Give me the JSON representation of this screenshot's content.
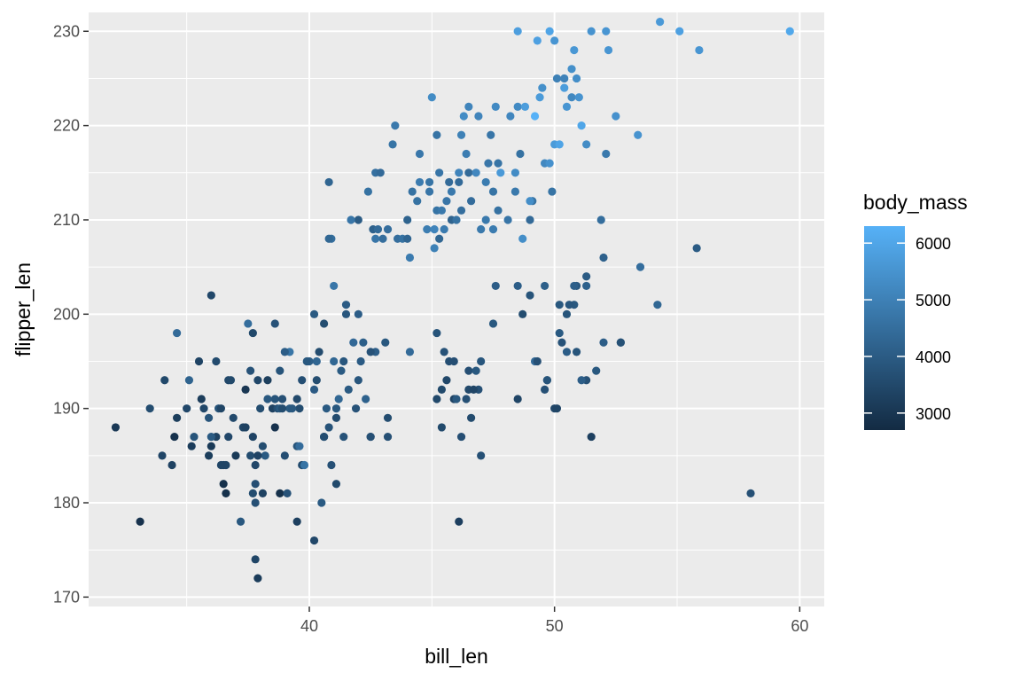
{
  "chart_data": {
    "type": "scatter",
    "title": "",
    "xlabel": "bill_len",
    "ylabel": "flipper_len",
    "xlim": [
      31,
      61
    ],
    "ylim": [
      169,
      232
    ],
    "x_ticks": [
      40,
      50,
      60
    ],
    "y_ticks": [
      170,
      180,
      190,
      200,
      210,
      220,
      230
    ],
    "grid": true,
    "background": "#ebebeb",
    "color_scale": {
      "name": "body_mass",
      "min": 2700,
      "max": 6300,
      "low_color": "#132b43",
      "high_color": "#56b1f7",
      "ticks": [
        3000,
        4000,
        5000,
        6000
      ]
    },
    "legend_position": "right",
    "points": [
      [
        32.1,
        188,
        3050
      ],
      [
        33.1,
        178,
        2900
      ],
      [
        33.5,
        190,
        3600
      ],
      [
        34.0,
        185,
        3400
      ],
      [
        34.1,
        193,
        3475
      ],
      [
        34.4,
        184,
        3325
      ],
      [
        34.5,
        187,
        2900
      ],
      [
        34.6,
        189,
        3200
      ],
      [
        34.6,
        198,
        4400
      ],
      [
        35.0,
        190,
        3450
      ],
      [
        35.1,
        193,
        4200
      ],
      [
        35.2,
        186,
        3150
      ],
      [
        35.3,
        187,
        3800
      ],
      [
        35.5,
        195,
        3350
      ],
      [
        35.6,
        191,
        3175
      ],
      [
        35.7,
        190,
        3450
      ],
      [
        35.9,
        185,
        3200
      ],
      [
        35.9,
        189,
        3800
      ],
      [
        36.0,
        186,
        3100
      ],
      [
        36.0,
        202,
        3450
      ],
      [
        36.2,
        187,
        3300
      ],
      [
        36.2,
        195,
        3550
      ],
      [
        36.3,
        190,
        3800
      ],
      [
        36.4,
        190,
        3400
      ],
      [
        36.5,
        182,
        2850
      ],
      [
        36.5,
        184,
        3300
      ],
      [
        36.6,
        181,
        2850
      ],
      [
        36.6,
        184,
        3400
      ],
      [
        36.7,
        187,
        3450
      ],
      [
        36.7,
        193,
        3450
      ],
      [
        36.8,
        193,
        3500
      ],
      [
        36.9,
        189,
        3500
      ],
      [
        37.0,
        185,
        3100
      ],
      [
        37.2,
        178,
        3900
      ],
      [
        37.3,
        188,
        3400
      ],
      [
        37.4,
        192,
        3000
      ],
      [
        37.5,
        199,
        4475
      ],
      [
        37.6,
        185,
        3600
      ],
      [
        37.6,
        194,
        3750
      ],
      [
        37.7,
        181,
        3600
      ],
      [
        37.7,
        187,
        3350
      ],
      [
        37.7,
        198,
        3500
      ],
      [
        37.8,
        174,
        3400
      ],
      [
        37.8,
        180,
        3700
      ],
      [
        37.9,
        172,
        3150
      ],
      [
        37.9,
        193,
        3450
      ],
      [
        38.0,
        190,
        3600
      ],
      [
        38.1,
        181,
        3325
      ],
      [
        38.1,
        186,
        3600
      ],
      [
        38.2,
        185,
        3950
      ],
      [
        38.3,
        193,
        3225
      ],
      [
        38.5,
        190,
        3325
      ],
      [
        38.6,
        188,
        2900
      ],
      [
        38.6,
        191,
        3800
      ],
      [
        38.6,
        199,
        3750
      ],
      [
        38.7,
        190,
        3650
      ],
      [
        38.8,
        181,
        2850
      ],
      [
        38.9,
        191,
        3700
      ],
      [
        39.0,
        185,
        3650
      ],
      [
        39.1,
        181,
        3750
      ],
      [
        39.2,
        196,
        4675
      ],
      [
        39.5,
        178,
        3250
      ],
      [
        39.5,
        186,
        3800
      ],
      [
        39.6,
        186,
        4450
      ],
      [
        39.7,
        184,
        3550
      ],
      [
        39.8,
        184,
        4650
      ],
      [
        40.2,
        176,
        3450
      ],
      [
        40.3,
        195,
        4250
      ],
      [
        40.5,
        180,
        3950
      ],
      [
        40.6,
        187,
        3475
      ],
      [
        40.8,
        188,
        3775
      ],
      [
        40.9,
        184,
        3700
      ],
      [
        41.0,
        203,
        4725
      ],
      [
        41.1,
        182,
        3525
      ],
      [
        41.3,
        194,
        3950
      ],
      [
        41.4,
        195,
        3850
      ],
      [
        41.5,
        201,
        4000
      ],
      [
        41.6,
        192,
        3950
      ],
      [
        42.0,
        200,
        4050
      ],
      [
        42.1,
        195,
        4000
      ],
      [
        42.3,
        191,
        4150
      ],
      [
        42.5,
        187,
        3350
      ],
      [
        42.7,
        196,
        4075
      ],
      [
        43.1,
        197,
        3900
      ],
      [
        43.2,
        187,
        3700
      ],
      [
        44.1,
        196,
        4400
      ],
      [
        45.2,
        191,
        3500
      ],
      [
        45.4,
        188,
        3525
      ],
      [
        45.5,
        196,
        3750
      ],
      [
        45.7,
        195,
        3650
      ],
      [
        46.1,
        178,
        3250
      ],
      [
        46.2,
        187,
        3650
      ],
      [
        46.4,
        191,
        3700
      ],
      [
        46.9,
        192,
        3700
      ],
      [
        47.0,
        185,
        3700
      ],
      [
        47.5,
        199,
        3900
      ],
      [
        48.5,
        191,
        3400
      ],
      [
        49.0,
        210,
        4400
      ],
      [
        49.2,
        195,
        4400
      ],
      [
        49.6,
        192,
        3700
      ],
      [
        50.0,
        190,
        3450
      ],
      [
        50.2,
        198,
        3950
      ],
      [
        50.5,
        196,
        4050
      ],
      [
        50.8,
        201,
        3900
      ],
      [
        51.5,
        187,
        3250
      ],
      [
        51.7,
        194,
        3900
      ],
      [
        52.0,
        197,
        4050
      ],
      [
        52.7,
        197,
        3725
      ],
      [
        53.5,
        205,
        4500
      ],
      [
        54.2,
        201,
        4300
      ],
      [
        55.8,
        207,
        4000
      ],
      [
        58.0,
        181,
        3700
      ],
      [
        42.5,
        187,
        3700
      ],
      [
        43.2,
        189,
        3600
      ],
      [
        46.6,
        189,
        3550
      ],
      [
        45.9,
        191,
        3350
      ],
      [
        46.5,
        192,
        3500
      ],
      [
        49.7,
        193,
        3775
      ],
      [
        50.1,
        190,
        3400
      ],
      [
        48.7,
        200,
        3600
      ],
      [
        50.3,
        197,
        3750
      ],
      [
        46.0,
        191,
        3900
      ],
      [
        40.8,
        214,
        4250
      ],
      [
        42.0,
        210,
        4000
      ],
      [
        42.4,
        213,
        4600
      ],
      [
        42.6,
        209,
        4150
      ],
      [
        43.2,
        209,
        4500
      ],
      [
        43.5,
        220,
        4800
      ],
      [
        43.6,
        208,
        4500
      ],
      [
        43.8,
        208,
        4600
      ],
      [
        44.0,
        210,
        4200
      ],
      [
        44.4,
        212,
        4600
      ],
      [
        44.5,
        214,
        4850
      ],
      [
        44.9,
        213,
        4700
      ],
      [
        45.1,
        207,
        5000
      ],
      [
        45.2,
        211,
        4650
      ],
      [
        45.3,
        215,
        4700
      ],
      [
        45.4,
        211,
        4800
      ],
      [
        45.5,
        209,
        4850
      ],
      [
        45.7,
        214,
        4400
      ],
      [
        45.8,
        210,
        4200
      ],
      [
        46.1,
        215,
        5100
      ],
      [
        46.2,
        219,
        5000
      ],
      [
        46.4,
        217,
        4900
      ],
      [
        46.5,
        215,
        4400
      ],
      [
        46.8,
        215,
        5150
      ],
      [
        47.2,
        214,
        4875
      ],
      [
        47.3,
        216,
        4725
      ],
      [
        47.5,
        209,
        4875
      ],
      [
        47.7,
        216,
        4650
      ],
      [
        48.2,
        221,
        5150
      ],
      [
        48.4,
        213,
        4800
      ],
      [
        48.5,
        222,
        5250
      ],
      [
        48.7,
        208,
        5350
      ],
      [
        49.1,
        212,
        4625
      ],
      [
        49.6,
        216,
        5200
      ],
      [
        49.9,
        213,
        4650
      ],
      [
        50.0,
        218,
        5700
      ],
      [
        50.4,
        224,
        5750
      ],
      [
        50.5,
        222,
        5550
      ],
      [
        50.8,
        228,
        5600
      ],
      [
        51.1,
        220,
        6000
      ],
      [
        51.3,
        218,
        5300
      ],
      [
        52.1,
        217,
        4800
      ],
      [
        52.2,
        228,
        5550
      ],
      [
        52.5,
        221,
        5450
      ],
      [
        53.4,
        219,
        5500
      ],
      [
        54.3,
        231,
        5650
      ],
      [
        55.1,
        230,
        5850
      ],
      [
        55.9,
        228,
        5550
      ],
      [
        59.6,
        230,
        6050
      ],
      [
        48.5,
        230,
        5800
      ],
      [
        49.3,
        229,
        5850
      ],
      [
        49.8,
        230,
        5950
      ],
      [
        50.0,
        229,
        5550
      ],
      [
        50.1,
        225,
        5000
      ],
      [
        50.4,
        225,
        5050
      ],
      [
        50.7,
        226,
        5400
      ],
      [
        50.9,
        225,
        5350
      ],
      [
        51.5,
        230,
        5500
      ],
      [
        52.1,
        230,
        5550
      ],
      [
        47.8,
        215,
        5650
      ],
      [
        49.0,
        212,
        5350
      ],
      [
        45.0,
        223,
        5300
      ],
      [
        48.4,
        215,
        5300
      ],
      [
        49.5,
        224,
        5400
      ],
      [
        47.6,
        222,
        5250
      ],
      [
        46.5,
        222,
        5100
      ],
      [
        45.2,
        219,
        4650
      ],
      [
        44.5,
        217,
        4750
      ],
      [
        43.4,
        218,
        4650
      ],
      [
        42.7,
        215,
        4550
      ],
      [
        42.9,
        215,
        4400
      ],
      [
        44.1,
        206,
        4850
      ],
      [
        45.6,
        212,
        4700
      ],
      [
        47.2,
        210,
        4800
      ],
      [
        46.3,
        221,
        5300
      ],
      [
        46.9,
        221,
        5100
      ],
      [
        49.8,
        216,
        5450
      ],
      [
        50.7,
        223,
        5200
      ],
      [
        48.8,
        222,
        5750
      ],
      [
        49.2,
        221,
        6300
      ],
      [
        47.5,
        213,
        4650
      ],
      [
        46.1,
        214,
        4400
      ],
      [
        45.3,
        208,
        4300
      ],
      [
        44.2,
        213,
        4600
      ],
      [
        43.0,
        208,
        4500
      ],
      [
        42.8,
        209,
        4400
      ],
      [
        41.7,
        210,
        4700
      ],
      [
        40.9,
        208,
        4500
      ],
      [
        44.0,
        208,
        4250
      ],
      [
        45.8,
        213,
        4800
      ],
      [
        46.6,
        212,
        4450
      ],
      [
        47.4,
        219,
        4700
      ],
      [
        48.6,
        217,
        4600
      ],
      [
        49.4,
        223,
        5700
      ],
      [
        50.2,
        218,
        5950
      ],
      [
        51.0,
        223,
        5500
      ],
      [
        51.9,
        210,
        4500
      ],
      [
        52.0,
        206,
        4150
      ],
      [
        51.3,
        204,
        4000
      ],
      [
        50.9,
        203,
        3900
      ],
      [
        50.6,
        201,
        3850
      ],
      [
        50.8,
        203,
        4100
      ],
      [
        51.3,
        203,
        4150
      ],
      [
        52.7,
        197,
        3725
      ],
      [
        48.5,
        203,
        4050
      ],
      [
        47.6,
        203,
        4050
      ],
      [
        49.0,
        202,
        3800
      ],
      [
        49.6,
        203,
        4100
      ],
      [
        50.2,
        201,
        3900
      ],
      [
        50.9,
        196,
        3800
      ],
      [
        49.3,
        195,
        3700
      ],
      [
        45.6,
        193,
        3450
      ],
      [
        47.0,
        195,
        3850
      ],
      [
        45.9,
        195,
        3650
      ],
      [
        45.2,
        198,
        3800
      ],
      [
        46.5,
        194,
        3650
      ],
      [
        46.8,
        194,
        3900
      ],
      [
        45.4,
        192,
        3525
      ],
      [
        46.7,
        192,
        3400
      ],
      [
        51.3,
        193,
        3700
      ],
      [
        51.1,
        193,
        4050
      ],
      [
        49.7,
        193,
        3800
      ],
      [
        50.5,
        200,
        3800
      ],
      [
        40.6,
        199,
        3600
      ],
      [
        41.5,
        200,
        3850
      ],
      [
        41.8,
        197,
        4350
      ],
      [
        42.5,
        196,
        3750
      ],
      [
        42.2,
        197,
        4100
      ],
      [
        40.2,
        200,
        3950
      ],
      [
        40.4,
        196,
        3550
      ],
      [
        40.7,
        190,
        3950
      ],
      [
        39.2,
        190,
        3950
      ],
      [
        38.8,
        190,
        3900
      ],
      [
        37.8,
        184,
        3450
      ],
      [
        36.4,
        184,
        3400
      ],
      [
        36.0,
        187,
        3950
      ],
      [
        37.9,
        185,
        3350
      ],
      [
        39.6,
        190,
        3600
      ],
      [
        39.0,
        196,
        4050
      ],
      [
        40.0,
        195,
        4050
      ],
      [
        40.2,
        192,
        3975
      ],
      [
        41.1,
        190,
        3900
      ],
      [
        40.6,
        187,
        3625
      ],
      [
        41.4,
        187,
        3750
      ],
      [
        39.5,
        191,
        3500
      ],
      [
        38.9,
        190,
        3600
      ],
      [
        41.2,
        191,
        4300
      ],
      [
        42.0,
        193,
        3850
      ],
      [
        40.3,
        193,
        3600
      ],
      [
        41.0,
        195,
        4300
      ],
      [
        41.9,
        190,
        3750
      ],
      [
        39.9,
        195,
        3900
      ],
      [
        39.3,
        190,
        3900
      ],
      [
        38.3,
        191,
        3900
      ],
      [
        37.8,
        182,
        3650
      ],
      [
        37.4,
        188,
        3300
      ],
      [
        38.8,
        194,
        3800
      ],
      [
        39.7,
        193,
        3675
      ],
      [
        41.1,
        189,
        3550
      ],
      [
        40.8,
        208,
        4300
      ],
      [
        42.7,
        208,
        4700
      ],
      [
        44.8,
        209,
        4900
      ],
      [
        45.1,
        209,
        5100
      ],
      [
        46.0,
        210,
        4600
      ],
      [
        47.0,
        209,
        4800
      ],
      [
        48.1,
        210,
        4700
      ],
      [
        47.7,
        211,
        4600
      ],
      [
        46.2,
        211,
        4500
      ],
      [
        44.9,
        214,
        4650
      ]
    ]
  }
}
